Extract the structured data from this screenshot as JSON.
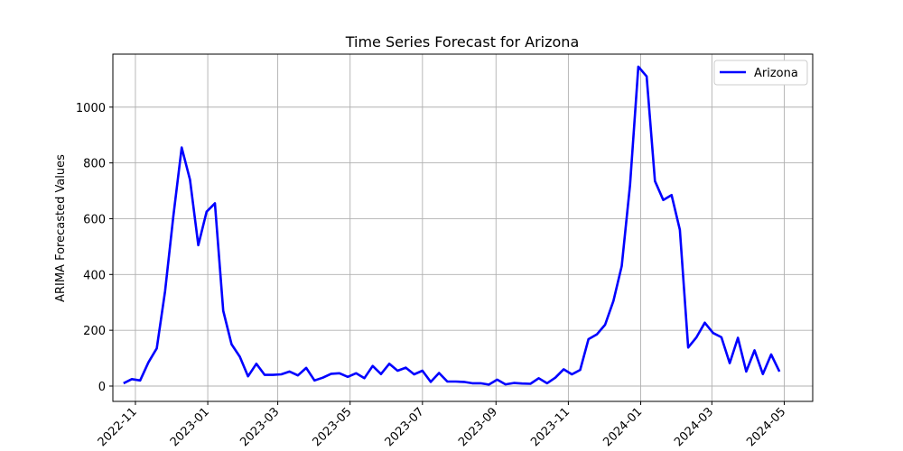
{
  "chart_data": {
    "type": "line",
    "title": "Time Series Forecast for Arizona",
    "xlabel": "",
    "ylabel": "ARIMA Forecasted Values",
    "x_tick_labels": [
      "2022-11",
      "2023-01",
      "2023-03",
      "2023-05",
      "2023-07",
      "2023-09",
      "2023-11",
      "2024-01",
      "2024-03",
      "2024-05"
    ],
    "x_tick_dates": [
      "2022-11-01",
      "2023-01-01",
      "2023-03-01",
      "2023-05-01",
      "2023-07-01",
      "2023-09-01",
      "2023-11-01",
      "2024-01-01",
      "2024-03-01",
      "2024-05-01"
    ],
    "y_ticks": [
      0,
      200,
      400,
      600,
      800,
      1000
    ],
    "xlim": [
      "2022-10-13",
      "2024-05-25"
    ],
    "ylim": [
      -55,
      1190
    ],
    "grid": true,
    "legend_position": "top-right",
    "series": [
      {
        "name": "Arizona",
        "color": "#0000ff",
        "x": [
          "2022-10-22",
          "2022-10-29",
          "2022-11-05",
          "2022-11-12",
          "2022-11-19",
          "2022-11-26",
          "2022-12-03",
          "2022-12-10",
          "2022-12-17",
          "2022-12-24",
          "2022-12-31",
          "2023-01-07",
          "2023-01-14",
          "2023-01-21",
          "2023-01-28",
          "2023-02-04",
          "2023-02-11",
          "2023-02-18",
          "2023-02-25",
          "2023-03-04",
          "2023-03-11",
          "2023-03-18",
          "2023-03-25",
          "2023-04-01",
          "2023-04-08",
          "2023-04-15",
          "2023-04-22",
          "2023-04-29",
          "2023-05-06",
          "2023-05-13",
          "2023-05-20",
          "2023-05-27",
          "2023-06-03",
          "2023-06-10",
          "2023-06-17",
          "2023-06-24",
          "2023-07-01",
          "2023-07-08",
          "2023-07-15",
          "2023-07-22",
          "2023-07-29",
          "2023-08-05",
          "2023-08-12",
          "2023-08-19",
          "2023-08-26",
          "2023-09-02",
          "2023-09-09",
          "2023-09-16",
          "2023-09-23",
          "2023-09-30",
          "2023-10-07",
          "2023-10-14",
          "2023-10-21",
          "2023-10-28",
          "2023-11-04",
          "2023-11-11",
          "2023-11-18",
          "2023-11-25",
          "2023-12-02",
          "2023-12-09",
          "2023-12-16",
          "2023-12-23",
          "2023-12-30",
          "2024-01-06",
          "2024-01-13",
          "2024-01-20",
          "2024-01-27",
          "2024-02-03",
          "2024-02-10",
          "2024-02-17",
          "2024-02-24",
          "2024-03-02",
          "2024-03-09",
          "2024-03-16",
          "2024-03-23",
          "2024-03-30",
          "2024-04-06",
          "2024-04-13",
          "2024-04-20",
          "2024-04-27"
        ],
        "y": [
          10,
          25,
          20,
          85,
          135,
          340,
          610,
          855,
          740,
          505,
          625,
          655,
          270,
          150,
          105,
          35,
          80,
          40,
          40,
          42,
          52,
          38,
          65,
          20,
          30,
          44,
          46,
          33,
          46,
          28,
          72,
          43,
          80,
          55,
          66,
          42,
          55,
          15,
          47,
          16,
          16,
          15,
          10,
          10,
          5,
          23,
          6,
          11,
          9,
          8,
          28,
          10,
          30,
          60,
          42,
          58,
          168,
          185,
          220,
          305,
          430,
          720,
          1145,
          1110,
          735,
          667,
          685,
          560,
          138,
          175,
          227,
          190,
          175,
          82,
          173,
          52,
          128,
          43,
          113,
          52
        ]
      }
    ]
  }
}
